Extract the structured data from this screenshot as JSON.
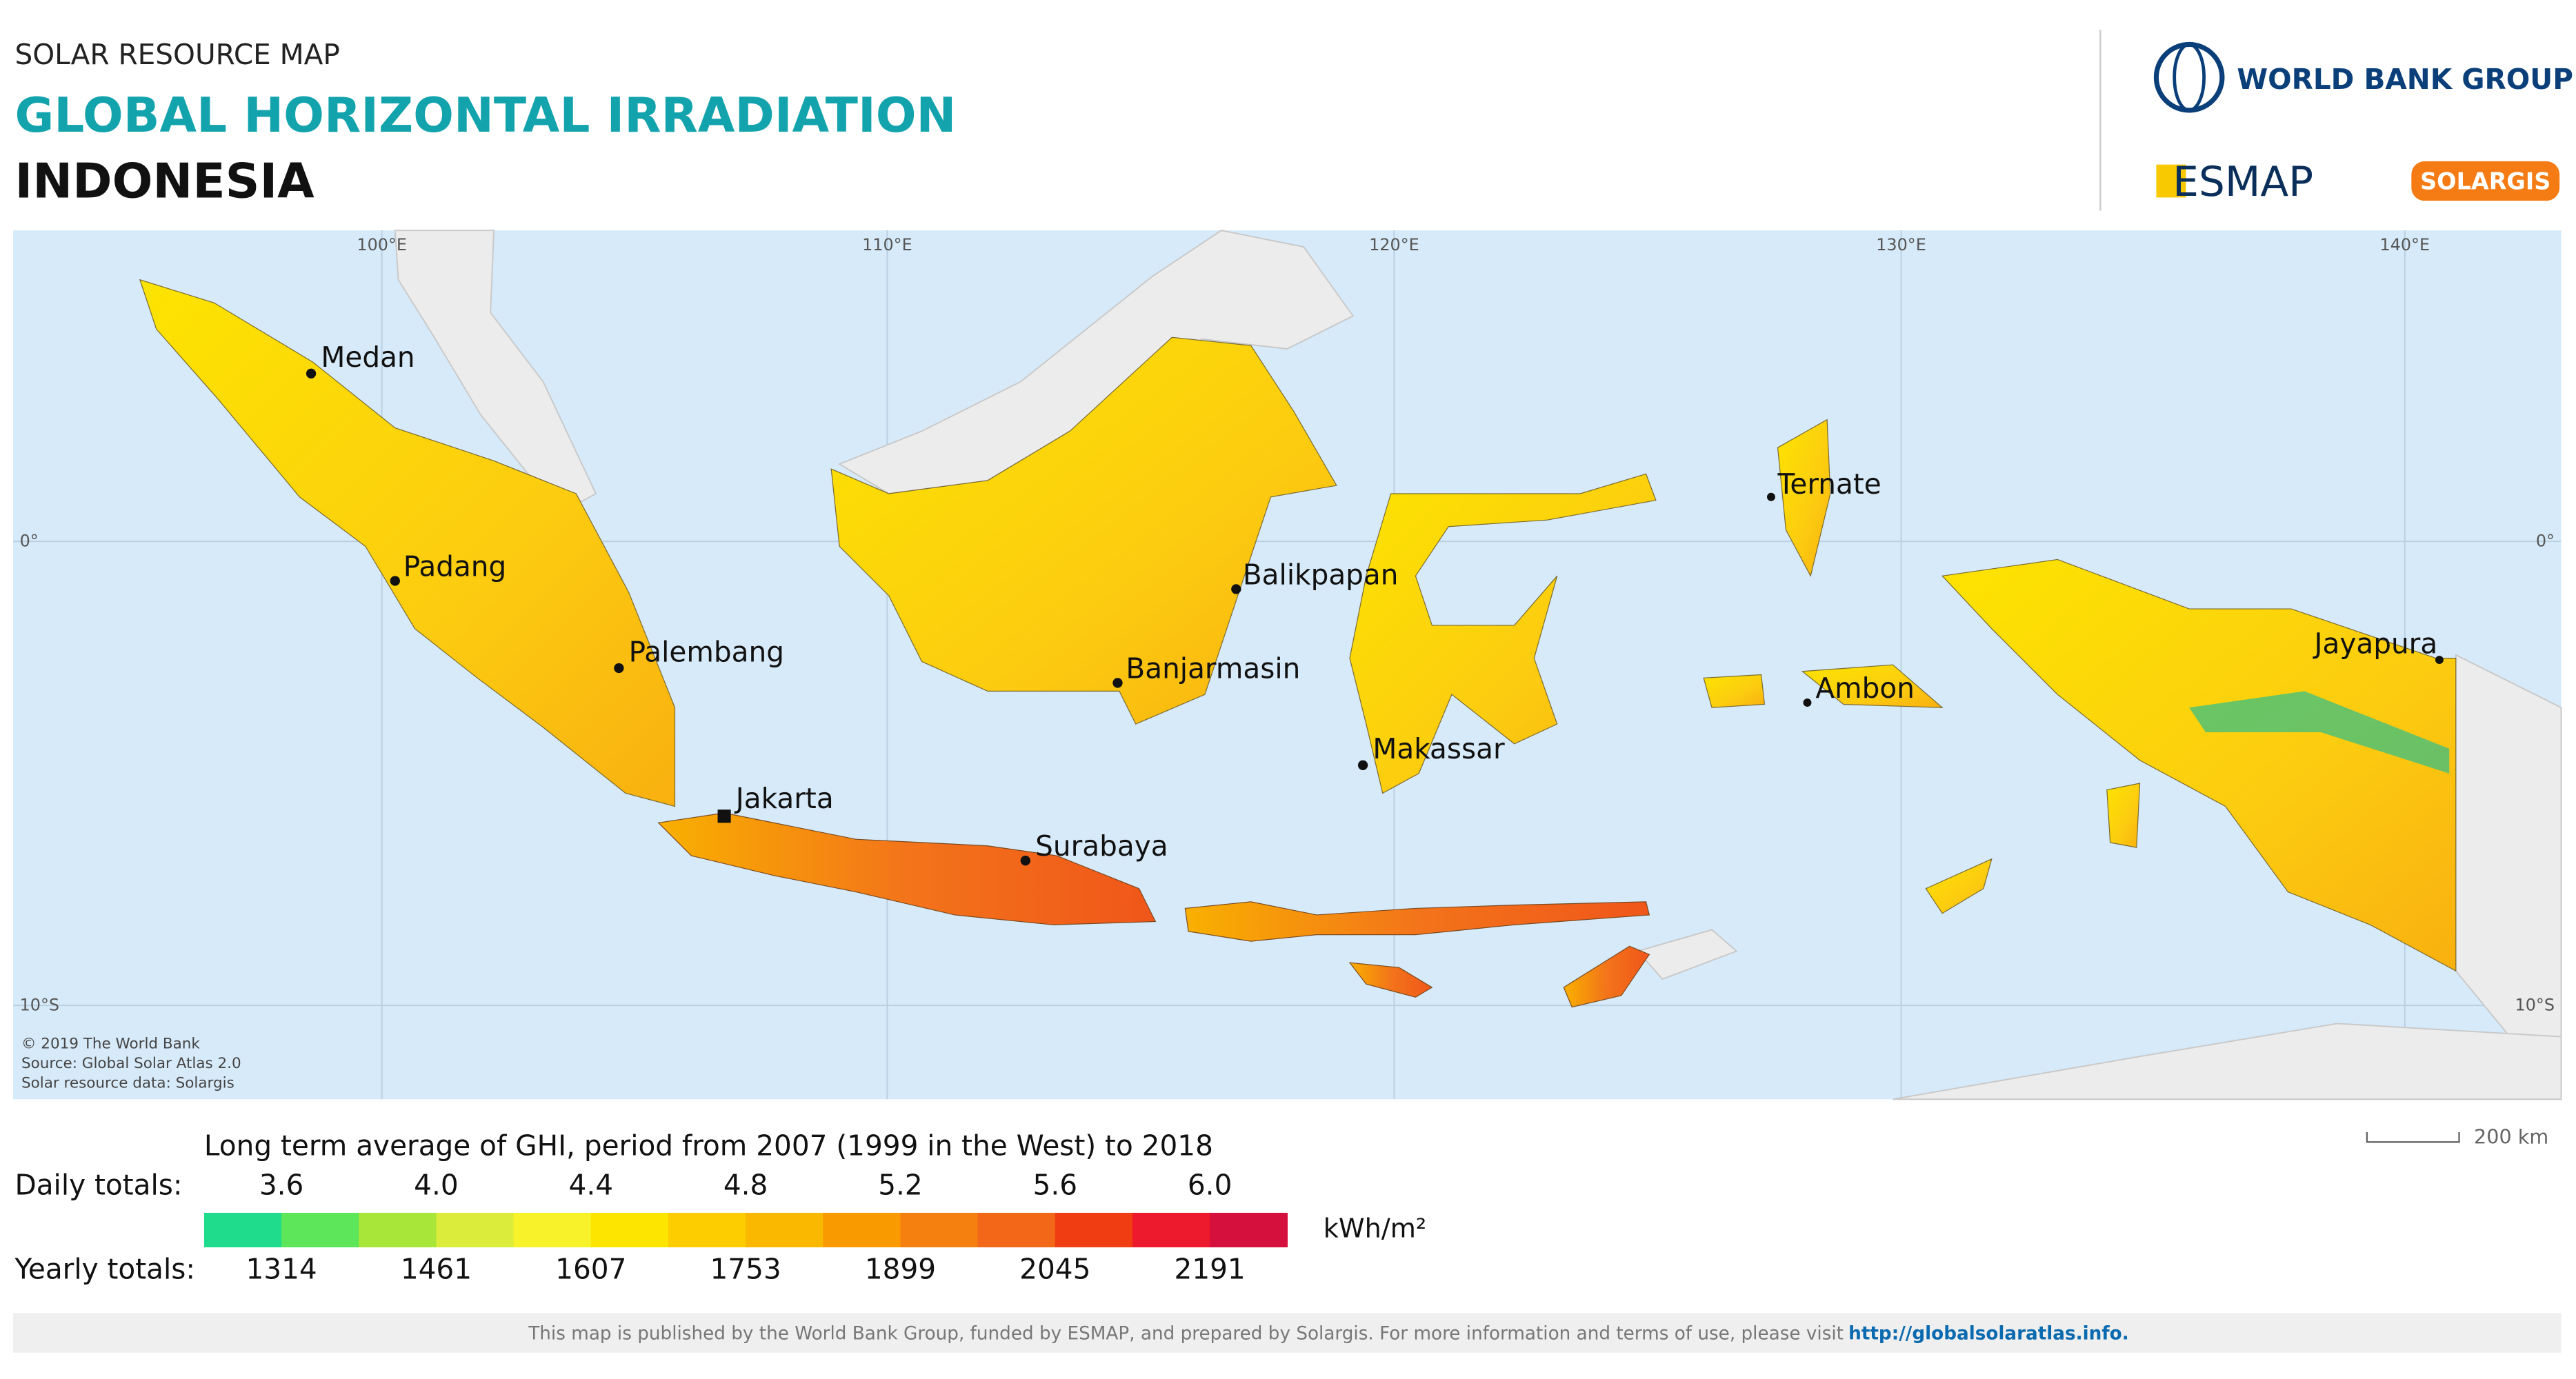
{
  "header": {
    "kicker": "SOLAR RESOURCE MAP",
    "title": "GLOBAL HORIZONTAL IRRADIATION",
    "country": "INDONESIA"
  },
  "logos": {
    "world_bank": "WORLD BANK GROUP",
    "esmap": "ESMAP",
    "solargis": "SOLARGIS"
  },
  "map": {
    "longitudes": [
      "100°E",
      "110°E",
      "120°E",
      "130°E",
      "140°E"
    ],
    "latitudes": [
      "0°",
      "10°S"
    ],
    "cities": [
      {
        "name": "Medan"
      },
      {
        "name": "Padang"
      },
      {
        "name": "Palembang"
      },
      {
        "name": "Jakarta"
      },
      {
        "name": "Surabaya"
      },
      {
        "name": "Balikpapan"
      },
      {
        "name": "Banjarmasin"
      },
      {
        "name": "Makassar"
      },
      {
        "name": "Ternate"
      },
      {
        "name": "Ambon"
      },
      {
        "name": "Jayapura"
      }
    ],
    "credits": [
      "© 2019 The World Bank",
      "Source: Global Solar Atlas 2.0",
      "Solar resource data: Solargis"
    ],
    "scale": "200 km"
  },
  "legend": {
    "title": "Long term average of GHI, period from 2007 (1999 in the West) to 2018",
    "daily_label": "Daily totals:",
    "daily": [
      "3.6",
      "4.0",
      "4.4",
      "4.8",
      "5.2",
      "5.6",
      "6.0"
    ],
    "yearly_label": "Yearly totals:",
    "yearly": [
      "1314",
      "1461",
      "1607",
      "1753",
      "1899",
      "2045",
      "2191"
    ],
    "unit": "kWh/m²",
    "colors": [
      "#1fdc8c",
      "#5ee65a",
      "#a8e63a",
      "#dcec3a",
      "#f7f22a",
      "#fde500",
      "#fdcd00",
      "#fbb800",
      "#f99a00",
      "#f6800f",
      "#f26718",
      "#f03e12",
      "#ec1a2c",
      "#d6103c"
    ]
  },
  "footer": {
    "text": "This map is published by the World Bank Group, funded by ESMAP, and prepared by Solargis. For more information and terms of use, please visit",
    "link": "http://globalsolaratlas.info."
  }
}
